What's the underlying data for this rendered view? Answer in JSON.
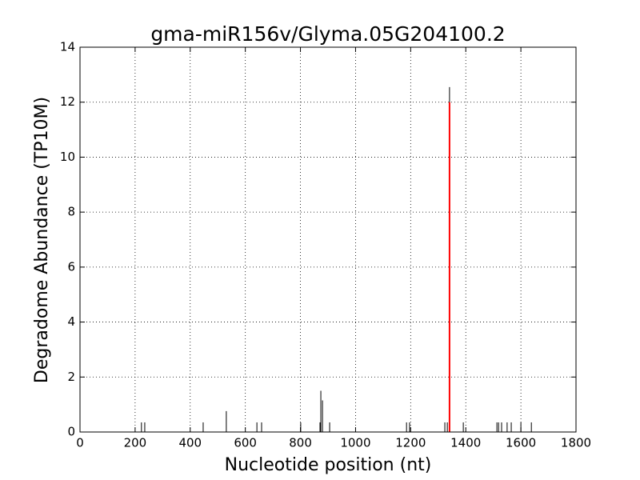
{
  "chart_data": {
    "type": "stem",
    "title": "gma-miR156v/Glyma.05G204100.2",
    "x_label": "Nucleotide position (nt)",
    "y_label": "Degradome Abundance (TP10M)",
    "xlim": [
      0,
      1800
    ],
    "xticks": [
      0,
      200,
      400,
      600,
      800,
      1000,
      1200,
      1400,
      1600,
      1800
    ],
    "ylim": [
      0,
      14
    ],
    "yticks": [
      0,
      2,
      4,
      6,
      8,
      10,
      12,
      14
    ],
    "grid": true,
    "series": [
      {
        "color": "#000000",
        "x": [
          223,
          235,
          447,
          531,
          642,
          659,
          801,
          871,
          874,
          880,
          906,
          1185,
          1196,
          1324,
          1333,
          1341,
          1391,
          1513,
          1519,
          1530,
          1550,
          1565,
          1600,
          1638
        ],
        "values": [
          0.35,
          0.35,
          0.35,
          0.76,
          0.35,
          0.35,
          0.35,
          0.35,
          1.5,
          1.15,
          0.35,
          0.35,
          0.35,
          0.35,
          0.35,
          12.55,
          0.35,
          0.35,
          0.35,
          0.35,
          0.35,
          0.35,
          0.35,
          0.35
        ]
      },
      {
        "color": "#ff0000",
        "x": [
          1341
        ],
        "values": [
          12
        ]
      }
    ]
  }
}
